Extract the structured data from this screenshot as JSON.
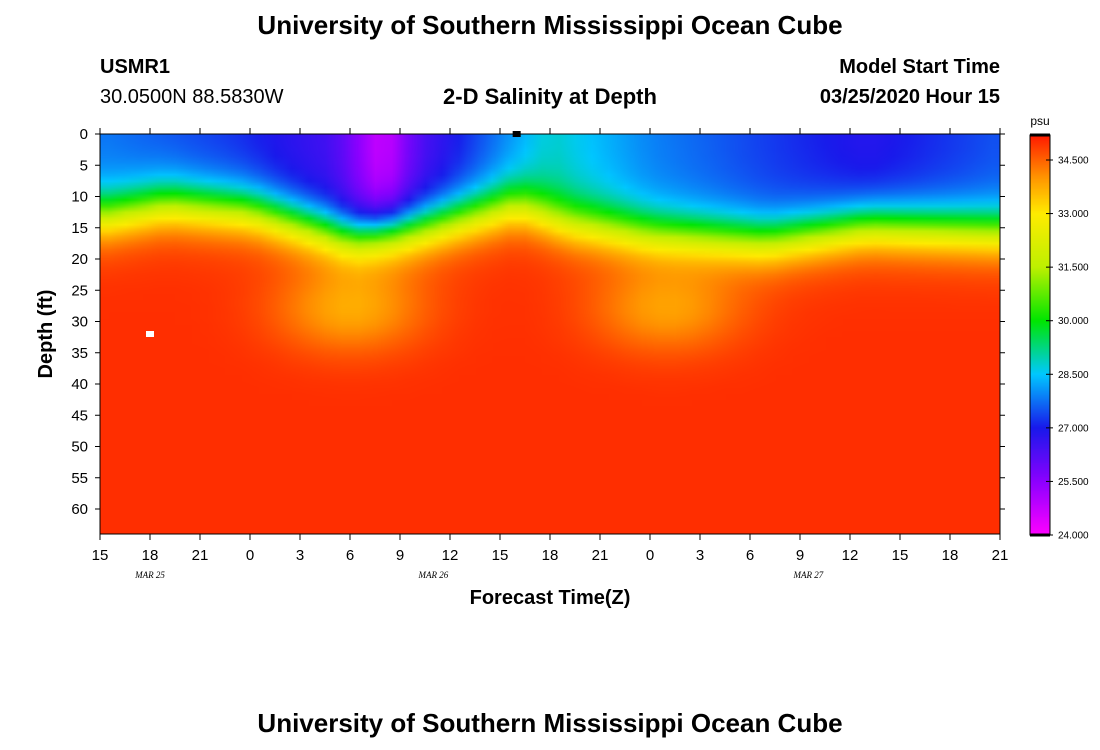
{
  "page": {
    "title_top": "University of Southern Mississippi Ocean Cube",
    "title_bottom": "University of Southern Mississippi Ocean Cube",
    "station_id": "USMR1",
    "station_coords": "30.0500N 88.5830W",
    "plot_title": "2-D Salinity at Depth",
    "model_start_label": "Model Start Time",
    "model_start_value": "03/25/2020 Hour 15"
  },
  "chart_data": {
    "type": "heatmap",
    "title": "2-D Salinity at Depth",
    "xlabel": "Forecast Time(Z)",
    "ylabel": "Depth (ft)",
    "x_hours_range": [
      0,
      54
    ],
    "x_tick_labels": [
      "15",
      "18",
      "21",
      "0",
      "3",
      "6",
      "9",
      "12",
      "15",
      "18",
      "21",
      "0",
      "3",
      "6",
      "9",
      "12",
      "15",
      "18",
      "21"
    ],
    "x_date_labels": [
      {
        "text": "MAR  25",
        "hour": 3
      },
      {
        "text": "MAR  26",
        "hour": 20
      },
      {
        "text": "MAR  27",
        "hour": 42.5
      }
    ],
    "ylim": [
      0,
      64
    ],
    "y_ticks": [
      0,
      5,
      10,
      15,
      20,
      25,
      30,
      35,
      40,
      45,
      50,
      55,
      60
    ],
    "colorbar": {
      "unit": "psu",
      "min": 24.0,
      "max": 35.2,
      "tick_values": [
        34.5,
        33.0,
        31.5,
        30.0,
        28.5,
        27.0,
        25.5,
        24.0
      ],
      "tick_labels": [
        "34.500",
        "33.000",
        "31.500",
        "30.000",
        "28.500",
        "27.000",
        "25.500",
        "24.000"
      ]
    },
    "field": {
      "description": "salinity (psu) at time index t (hours after start) and depth d (ft)",
      "halocline_depth_ft": [
        [
          0,
          13
        ],
        [
          4,
          11
        ],
        [
          9,
          12
        ],
        [
          15,
          16.5
        ],
        [
          19,
          15
        ],
        [
          25,
          11
        ],
        [
          28,
          14
        ],
        [
          33,
          16
        ],
        [
          40,
          17
        ],
        [
          46,
          14.5
        ],
        [
          54,
          15.5
        ]
      ],
      "surface_psu": [
        [
          0,
          27.8
        ],
        [
          8,
          27.2
        ],
        [
          14,
          26.4
        ],
        [
          17,
          24.5
        ],
        [
          19,
          26.2
        ],
        [
          27,
          28.8
        ],
        [
          33,
          27.9
        ],
        [
          40,
          27.3
        ],
        [
          46,
          26.8
        ],
        [
          54,
          27.5
        ]
      ],
      "deep_psu": 35.0,
      "valleys_psu": [
        {
          "t": 15,
          "d": 28,
          "psu": 33.8
        },
        {
          "t": 34,
          "d": 28,
          "psu": 33.9
        }
      ]
    },
    "markers": [
      {
        "t": 3,
        "d": 32,
        "color": "#ffffff"
      },
      {
        "t": 25,
        "d": 0,
        "color": "#000000"
      }
    ]
  }
}
